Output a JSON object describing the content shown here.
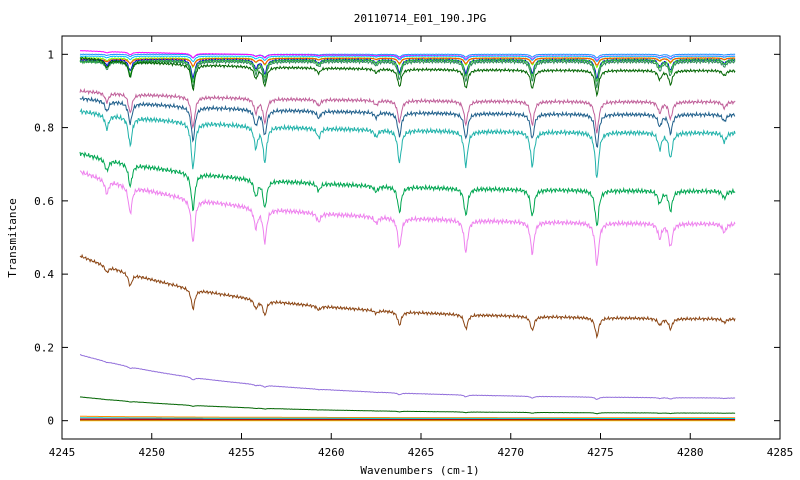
{
  "chart_data": {
    "type": "line",
    "title": "20110714_E01_190.JPG",
    "xlabel": "Wavenumbers (cm-1)",
    "ylabel": "Transmitance",
    "xlim": [
      4245,
      4285
    ],
    "ylim": [
      -0.05,
      1.05
    ],
    "xticks": [
      4245,
      4250,
      4255,
      4260,
      4265,
      4270,
      4275,
      4280,
      4285
    ],
    "yticks": [
      0,
      0.2,
      0.4,
      0.6,
      0.8,
      1
    ],
    "ytick_labels": [
      "0",
      "0.2",
      "0.4",
      "0.6",
      "0.8",
      "1"
    ],
    "grid": false,
    "legend": "none",
    "x_range": [
      4246,
      4282.5
    ],
    "absorption_lines": [
      {
        "x": 4247.5,
        "depth": 0.3
      },
      {
        "x": 4248.8,
        "depth": 0.6
      },
      {
        "x": 4252.3,
        "depth": 1.0
      },
      {
        "x": 4255.8,
        "depth": 0.45
      },
      {
        "x": 4256.3,
        "depth": 0.75
      },
      {
        "x": 4259.3,
        "depth": 0.2
      },
      {
        "x": 4262.5,
        "depth": 0.15
      },
      {
        "x": 4263.8,
        "depth": 0.7
      },
      {
        "x": 4267.5,
        "depth": 0.75
      },
      {
        "x": 4271.2,
        "depth": 0.75
      },
      {
        "x": 4274.8,
        "depth": 1.0
      },
      {
        "x": 4278.3,
        "depth": 0.35
      },
      {
        "x": 4278.9,
        "depth": 0.55
      },
      {
        "x": 4281.9,
        "depth": 0.2
      }
    ],
    "series": [
      {
        "color": "#1e90ff",
        "start": 1.0,
        "end": 1.0,
        "depth": 0.01
      },
      {
        "color": "#ff00ff",
        "start": 1.01,
        "end": 0.995,
        "depth": 0.012
      },
      {
        "color": "#00bfff",
        "start": 0.995,
        "end": 0.995,
        "depth": 0.015
      },
      {
        "color": "#7fff00",
        "start": 0.99,
        "end": 0.99,
        "depth": 0.025
      },
      {
        "color": "#ff4500",
        "start": 0.985,
        "end": 0.99,
        "depth": 0.02
      },
      {
        "color": "#0000cd",
        "start": 0.985,
        "end": 0.985,
        "depth": 0.05
      },
      {
        "color": "#32cd32",
        "start": 0.98,
        "end": 0.985,
        "depth": 0.06
      },
      {
        "color": "#2e8b57",
        "start": 0.98,
        "end": 0.98,
        "depth": 0.07
      },
      {
        "color": "#006400",
        "start": 0.99,
        "end": 0.955,
        "depth": 0.07
      },
      {
        "color": "#c0609a",
        "start": 0.9,
        "end": 0.87,
        "depth": 0.09
      },
      {
        "color": "#1f5f8b",
        "start": 0.88,
        "end": 0.835,
        "depth": 0.1
      },
      {
        "color": "#20b2aa",
        "start": 0.845,
        "end": 0.785,
        "depth": 0.14
      },
      {
        "color": "#00a651",
        "start": 0.73,
        "end": 0.625,
        "depth": 0.12
      },
      {
        "color": "#ee82ee",
        "start": 0.68,
        "end": 0.535,
        "depth": 0.15
      },
      {
        "color": "#8b4513",
        "start": 0.45,
        "end": 0.275,
        "depth": 0.08
      },
      {
        "color": "#9370db",
        "start": 0.18,
        "end": 0.06,
        "depth": 0.012
      },
      {
        "color": "#006400",
        "start": 0.065,
        "end": 0.02,
        "depth": 0.005
      },
      {
        "color": "#ff8c00",
        "start": 0.012,
        "end": 0.008,
        "depth": 0.0
      },
      {
        "color": "#dc143c",
        "start": 0.005,
        "end": 0.004,
        "depth": 0.0
      },
      {
        "color": "#ffd700",
        "start": 0.0,
        "end": 0.0,
        "depth": 0.0
      },
      {
        "color": "#00ced1",
        "start": 0.008,
        "end": 0.006,
        "depth": 0.0
      },
      {
        "color": "#8b0000",
        "start": 0.002,
        "end": 0.002,
        "depth": 0.0
      }
    ]
  }
}
